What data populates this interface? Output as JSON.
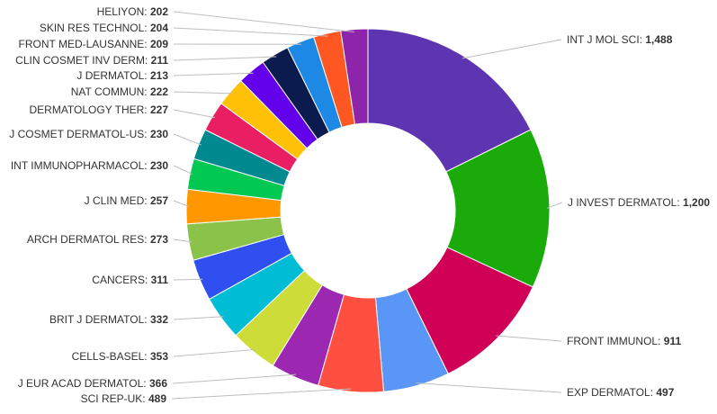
{
  "chart_data": {
    "type": "pie",
    "donut": true,
    "slices": [
      {
        "label": "INT J MOL SCI",
        "value": 1488,
        "value_text": "1,488",
        "color": "#5e35b1"
      },
      {
        "label": "J INVEST DERMATOL",
        "value": 1200,
        "value_text": "1,200",
        "color": "#1aab0b"
      },
      {
        "label": "FRONT IMMUNOL",
        "value": 911,
        "value_text": "911",
        "color": "#d10057"
      },
      {
        "label": "EXP DERMATOL",
        "value": 497,
        "value_text": "497",
        "color": "#5996f5"
      },
      {
        "label": "SCI REP-UK",
        "value": 489,
        "value_text": "489",
        "color": "#ff4f40"
      },
      {
        "label": "J EUR ACAD DERMATOL",
        "value": 366,
        "value_text": "366",
        "color": "#9c27b0"
      },
      {
        "label": "CELLS-BASEL",
        "value": 353,
        "value_text": "353",
        "color": "#cddc39"
      },
      {
        "label": "BRIT J DERMATOL",
        "value": 332,
        "value_text": "332",
        "color": "#00bcd4"
      },
      {
        "label": "CANCERS",
        "value": 311,
        "value_text": "311",
        "color": "#2f4ff0"
      },
      {
        "label": "ARCH DERMATOL RES",
        "value": 273,
        "value_text": "273",
        "color": "#8bc34a"
      },
      {
        "label": "J CLIN MED",
        "value": 257,
        "value_text": "257",
        "color": "#ff9800"
      },
      {
        "label": "INT IMMUNOPHARMACOL",
        "value": 230,
        "value_text": "230",
        "color": "#00c853"
      },
      {
        "label": "J COSMET DERMATOL-US",
        "value": 230,
        "value_text": "230",
        "color": "#00898f"
      },
      {
        "label": "DERMATOLOGY THER",
        "value": 227,
        "value_text": "227",
        "color": "#e91e63"
      },
      {
        "label": "NAT COMMUN",
        "value": 222,
        "value_text": "222",
        "color": "#ffc107"
      },
      {
        "label": "J DERMATOL",
        "value": 213,
        "value_text": "213",
        "color": "#6200ea"
      },
      {
        "label": "CLIN COSMET INV DERM",
        "value": 211,
        "value_text": "211",
        "color": "#0b1b4d"
      },
      {
        "label": "FRONT MED-LAUSANNE",
        "value": 209,
        "value_text": "209",
        "color": "#1e88e5"
      },
      {
        "label": "SKIN RES TECHNOL",
        "value": 204,
        "value_text": "204",
        "color": "#ff5722"
      },
      {
        "label": "HELIYON",
        "value": 202,
        "value_text": "202",
        "color": "#8e24aa"
      }
    ]
  }
}
